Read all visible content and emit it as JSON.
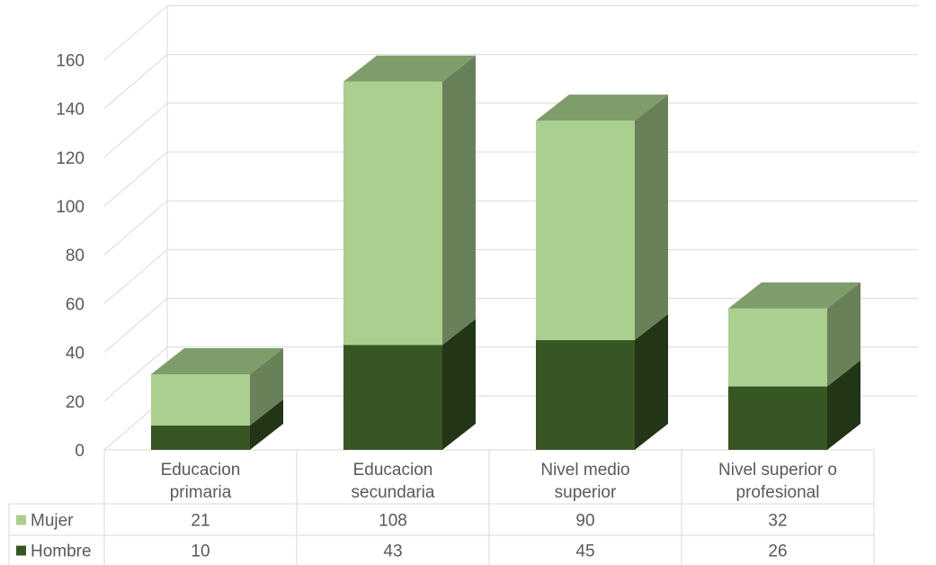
{
  "chart_data": {
    "type": "bar",
    "stacked": true,
    "style": "3d-column",
    "categories": [
      [
        "Educacion",
        "primaria"
      ],
      [
        "Educacion",
        "secundaria"
      ],
      [
        "Nivel medio",
        "superior"
      ],
      [
        "Nivel superior o",
        "profesional"
      ]
    ],
    "series": [
      {
        "name": "Hombre",
        "values": [
          10,
          43,
          45,
          26
        ],
        "color": "#375623"
      },
      {
        "name": "Mujer",
        "values": [
          21,
          108,
          90,
          32
        ],
        "color": "#A9D08E"
      }
    ],
    "table_rows": [
      {
        "name": "Mujer",
        "values": [
          "21",
          "108",
          "90",
          "32"
        ],
        "color": "#A9D08E"
      },
      {
        "name": "Hombre",
        "values": [
          "10",
          "43",
          "45",
          "26"
        ],
        "color": "#375623"
      }
    ],
    "ylim": [
      0,
      160
    ],
    "yticks": [
      "0",
      "20",
      "40",
      "60",
      "80",
      "100",
      "120",
      "140",
      "160"
    ],
    "grid": true,
    "data_table": true
  }
}
